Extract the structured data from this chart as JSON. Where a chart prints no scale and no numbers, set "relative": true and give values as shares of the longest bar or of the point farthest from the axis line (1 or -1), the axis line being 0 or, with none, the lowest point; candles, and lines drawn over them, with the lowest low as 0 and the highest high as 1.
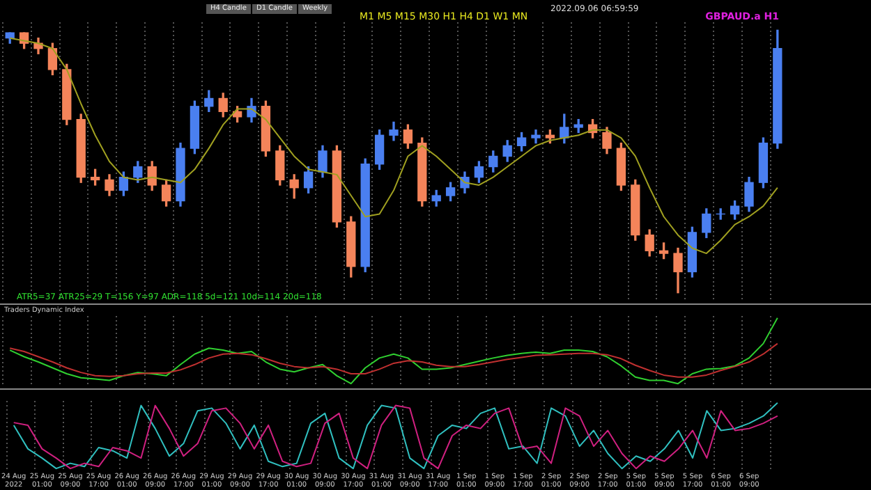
{
  "chart_data": [
    {
      "type": "candlestick",
      "relative": true,
      "title": "GBPAUD.a H1",
      "grid": "x",
      "tick_labels": false,
      "legend": false,
      "annotations": [
        "2022.09.06 06:59:59",
        "H4 Candle",
        "D1 Candle",
        "Weekly",
        "M1 M5 M15 M30 H1 H4 D1 W1 MN",
        "ATR5=37  ATR25=29    T=156    Y=97  ADR=118  5d=121  10d=114  20d=118"
      ],
      "colors": [
        "#4a7ff0",
        "#f4845a",
        "#f4845a",
        "#f4845a",
        "#f4845a",
        "#f4845a",
        "#f4845a",
        "#f4845a",
        "#4a7ff0",
        "#4a7ff0",
        "#f4845a",
        "#f4845a",
        "#4a7ff0",
        "#4a7ff0",
        "#4a7ff0",
        "#f4845a",
        "#f4845a",
        "#4a7ff0",
        "#f4845a",
        "#f4845a",
        "#f4845a",
        "#4a7ff0",
        "#4a7ff0",
        "#f4845a",
        "#f4845a",
        "#4a7ff0",
        "#4a7ff0",
        "#4a7ff0",
        "#f4845a",
        "#f4845a",
        "#4a7ff0",
        "#4a7ff0",
        "#4a7ff0",
        "#4a7ff0",
        "#4a7ff0",
        "#4a7ff0",
        "#4a7ff0",
        "#4a7ff0",
        "#f4845a",
        "#4a7ff0",
        "#4a7ff0",
        "#f4845a",
        "#f4845a",
        "#f4845a",
        "#f4845a",
        "#f4845a",
        "#f4845a",
        "#f4845a",
        "#4a7ff0",
        "#4a7ff0",
        "#4a7ff0",
        "#4a7ff0",
        "#4a7ff0",
        "#4a7ff0",
        "#4a7ff0"
      ],
      "categories": [
        null,
        null,
        null,
        null,
        null,
        null,
        null,
        null,
        null,
        null,
        null,
        null,
        null,
        null,
        null,
        null,
        null,
        null,
        null,
        null,
        null,
        null,
        null,
        null,
        null,
        null,
        null,
        null,
        null,
        null,
        null,
        null,
        null,
        null,
        null,
        null,
        null,
        null,
        null,
        null,
        null,
        null,
        null,
        null,
        null,
        null,
        null,
        null,
        null,
        null,
        null,
        null,
        null,
        null,
        null
      ],
      "ohlc": [
        [
          0.97,
          0.99,
          0.95,
          0.99
        ],
        [
          0.99,
          0.99,
          0.93,
          0.95
        ],
        [
          0.95,
          0.97,
          0.91,
          0.93
        ],
        [
          0.93,
          0.95,
          0.83,
          0.85
        ],
        [
          0.85,
          0.87,
          0.64,
          0.66
        ],
        [
          0.66,
          0.68,
          0.42,
          0.44
        ],
        [
          0.44,
          0.47,
          0.41,
          0.43
        ],
        [
          0.43,
          0.45,
          0.37,
          0.39
        ],
        [
          0.39,
          0.46,
          0.37,
          0.44
        ],
        [
          0.44,
          0.5,
          0.42,
          0.48
        ],
        [
          0.48,
          0.5,
          0.39,
          0.41
        ],
        [
          0.41,
          0.43,
          0.33,
          0.35
        ],
        [
          0.35,
          0.57,
          0.33,
          0.55
        ],
        [
          0.55,
          0.73,
          0.53,
          0.71
        ],
        [
          0.71,
          0.77,
          0.69,
          0.74
        ],
        [
          0.74,
          0.76,
          0.67,
          0.69
        ],
        [
          0.69,
          0.71,
          0.65,
          0.67
        ],
        [
          0.67,
          0.74,
          0.65,
          0.71
        ],
        [
          0.71,
          0.73,
          0.52,
          0.54
        ],
        [
          0.54,
          0.56,
          0.41,
          0.43
        ],
        [
          0.43,
          0.45,
          0.36,
          0.4
        ],
        [
          0.4,
          0.48,
          0.38,
          0.46
        ],
        [
          0.46,
          0.56,
          0.44,
          0.54
        ],
        [
          0.54,
          0.56,
          0.25,
          0.27
        ],
        [
          0.27,
          0.29,
          0.06,
          0.1
        ],
        [
          0.1,
          0.51,
          0.08,
          0.49
        ],
        [
          0.49,
          0.62,
          0.47,
          0.6
        ],
        [
          0.6,
          0.65,
          0.58,
          0.62
        ],
        [
          0.62,
          0.64,
          0.55,
          0.57
        ],
        [
          0.57,
          0.59,
          0.33,
          0.35
        ],
        [
          0.35,
          0.39,
          0.33,
          0.37
        ],
        [
          0.37,
          0.42,
          0.35,
          0.4
        ],
        [
          0.4,
          0.46,
          0.38,
          0.44
        ],
        [
          0.44,
          0.5,
          0.42,
          0.48
        ],
        [
          0.48,
          0.54,
          0.46,
          0.52
        ],
        [
          0.52,
          0.58,
          0.5,
          0.56
        ],
        [
          0.56,
          0.61,
          0.54,
          0.59
        ],
        [
          0.59,
          0.62,
          0.57,
          0.6
        ],
        [
          0.6,
          0.62,
          0.57,
          0.59
        ],
        [
          0.59,
          0.68,
          0.57,
          0.63
        ],
        [
          0.63,
          0.66,
          0.61,
          0.64
        ],
        [
          0.64,
          0.66,
          0.59,
          0.61
        ],
        [
          0.61,
          0.63,
          0.53,
          0.55
        ],
        [
          0.55,
          0.57,
          0.39,
          0.41
        ],
        [
          0.41,
          0.43,
          0.2,
          0.22
        ],
        [
          0.22,
          0.24,
          0.14,
          0.16
        ],
        [
          0.16,
          0.19,
          0.13,
          0.15
        ],
        [
          0.15,
          0.17,
          0.0,
          0.08
        ],
        [
          0.08,
          0.25,
          0.06,
          0.23
        ],
        [
          0.23,
          0.32,
          0.21,
          0.3
        ],
        [
          0.3,
          0.32,
          0.28,
          0.3
        ],
        [
          0.3,
          0.35,
          0.28,
          0.33
        ],
        [
          0.33,
          0.44,
          0.31,
          0.42
        ],
        [
          0.42,
          0.59,
          0.4,
          0.57
        ],
        [
          0.57,
          1.0,
          0.55,
          0.93
        ]
      ],
      "series": [
        {
          "type": "line",
          "color": "#a0a020",
          "values": [
            0.97,
            0.96,
            0.95,
            0.93,
            0.85,
            0.72,
            0.6,
            0.5,
            0.44,
            0.43,
            0.44,
            0.43,
            0.42,
            0.47,
            0.55,
            0.64,
            0.7,
            0.7,
            0.66,
            0.59,
            0.52,
            0.47,
            0.46,
            0.45,
            0.37,
            0.29,
            0.3,
            0.39,
            0.52,
            0.56,
            0.52,
            0.47,
            0.42,
            0.41,
            0.44,
            0.48,
            0.52,
            0.56,
            0.58,
            0.59,
            0.6,
            0.62,
            0.62,
            0.59,
            0.52,
            0.4,
            0.29,
            0.22,
            0.17,
            0.15,
            0.2,
            0.26,
            0.29,
            0.33,
            0.4
          ]
        }
      ]
    },
    {
      "type": "line",
      "relative": true,
      "title": "Traders Dynamic Index",
      "grid": "x",
      "tick_labels": false,
      "legend": false,
      "categories": [
        null,
        null,
        null,
        null,
        null,
        null,
        null,
        null,
        null,
        null,
        null,
        null,
        null,
        null,
        null,
        null,
        null,
        null,
        null,
        null,
        null,
        null,
        null,
        null,
        null,
        null,
        null,
        null,
        null,
        null,
        null,
        null,
        null,
        null,
        null,
        null,
        null,
        null,
        null,
        null,
        null,
        null,
        null,
        null,
        null,
        null,
        null,
        null,
        null,
        null,
        null,
        null,
        null,
        null,
        null
      ],
      "series": [
        {
          "color": "#c03030",
          "values": [
            0.54,
            0.49,
            0.41,
            0.33,
            0.24,
            0.17,
            0.12,
            0.11,
            0.12,
            0.15,
            0.16,
            0.16,
            0.21,
            0.29,
            0.39,
            0.45,
            0.46,
            0.44,
            0.38,
            0.31,
            0.26,
            0.24,
            0.26,
            0.22,
            0.15,
            0.15,
            0.22,
            0.31,
            0.35,
            0.33,
            0.28,
            0.26,
            0.26,
            0.29,
            0.33,
            0.37,
            0.4,
            0.43,
            0.44,
            0.45,
            0.46,
            0.46,
            0.44,
            0.38,
            0.28,
            0.2,
            0.13,
            0.1,
            0.1,
            0.13,
            0.2,
            0.26,
            0.33,
            0.45,
            0.61
          ]
        },
        {
          "color": "#30d030",
          "values": [
            0.51,
            0.41,
            0.33,
            0.24,
            0.15,
            0.09,
            0.07,
            0.05,
            0.12,
            0.17,
            0.15,
            0.12,
            0.29,
            0.45,
            0.54,
            0.51,
            0.46,
            0.49,
            0.33,
            0.22,
            0.18,
            0.24,
            0.29,
            0.12,
            0.0,
            0.24,
            0.39,
            0.45,
            0.39,
            0.22,
            0.22,
            0.24,
            0.29,
            0.34,
            0.39,
            0.43,
            0.46,
            0.48,
            0.46,
            0.51,
            0.51,
            0.49,
            0.41,
            0.27,
            0.1,
            0.05,
            0.05,
            0.0,
            0.15,
            0.22,
            0.23,
            0.27,
            0.39,
            0.61,
            1.0
          ]
        }
      ]
    },
    {
      "type": "line",
      "relative": true,
      "grid": "x",
      "tick_labels": "x",
      "legend": false,
      "categories": [
        "24 Aug 2022",
        null,
        "25 Aug 01:00",
        null,
        "25 Aug 09:00",
        null,
        "25 Aug 17:00",
        null,
        "26 Aug 01:00",
        null,
        "26 Aug 09:00",
        null,
        "26 Aug 17:00",
        null,
        "29 Aug 01:00",
        null,
        "29 Aug 09:00",
        null,
        "29 Aug 17:00",
        null,
        "30 Aug 01:00",
        null,
        "30 Aug 09:00",
        null,
        "30 Aug 17:00",
        null,
        "31 Aug 01:00",
        null,
        "31 Aug 09:00",
        null,
        "31 Aug 17:00",
        null,
        "1 Sep 01:00",
        null,
        "1 Sep 09:00",
        null,
        "1 Sep 17:00",
        null,
        "2 Sep 01:00",
        null,
        "2 Sep 09:00",
        null,
        "2 Sep 17:00",
        null,
        "5 Sep 01:00",
        null,
        "5 Sep 09:00",
        null,
        "5 Sep 17:00",
        null,
        "6 Sep 01:00",
        null,
        "6 Sep 09:00",
        null,
        null
      ],
      "series": [
        {
          "color": "#d02080",
          "values": [
            0.7,
            0.66,
            0.3,
            0.16,
            0.0,
            0.08,
            0.03,
            0.32,
            0.27,
            0.16,
            0.96,
            0.61,
            0.19,
            0.38,
            0.88,
            0.92,
            0.69,
            0.3,
            0.66,
            0.11,
            0.03,
            0.08,
            0.69,
            0.84,
            0.16,
            0.0,
            0.66,
            0.96,
            0.92,
            0.16,
            0.0,
            0.5,
            0.66,
            0.61,
            0.84,
            0.92,
            0.3,
            0.34,
            0.08,
            0.92,
            0.8,
            0.34,
            0.58,
            0.23,
            0.0,
            0.19,
            0.11,
            0.3,
            0.58,
            0.16,
            0.88,
            0.58,
            0.61,
            0.69,
            0.8
          ]
        },
        {
          "color": "#30c0c0",
          "values": [
            0.66,
            0.3,
            0.16,
            0.0,
            0.08,
            0.03,
            0.32,
            0.27,
            0.16,
            0.96,
            0.61,
            0.19,
            0.38,
            0.88,
            0.92,
            0.69,
            0.3,
            0.66,
            0.11,
            0.03,
            0.08,
            0.69,
            0.84,
            0.16,
            0.0,
            0.66,
            0.96,
            0.92,
            0.16,
            0.0,
            0.5,
            0.66,
            0.61,
            0.84,
            0.92,
            0.3,
            0.34,
            0.08,
            0.92,
            0.8,
            0.34,
            0.58,
            0.23,
            0.0,
            0.19,
            0.11,
            0.3,
            0.58,
            0.16,
            0.88,
            0.58,
            0.61,
            0.69,
            0.8,
            1.0
          ]
        }
      ]
    }
  ]
}
